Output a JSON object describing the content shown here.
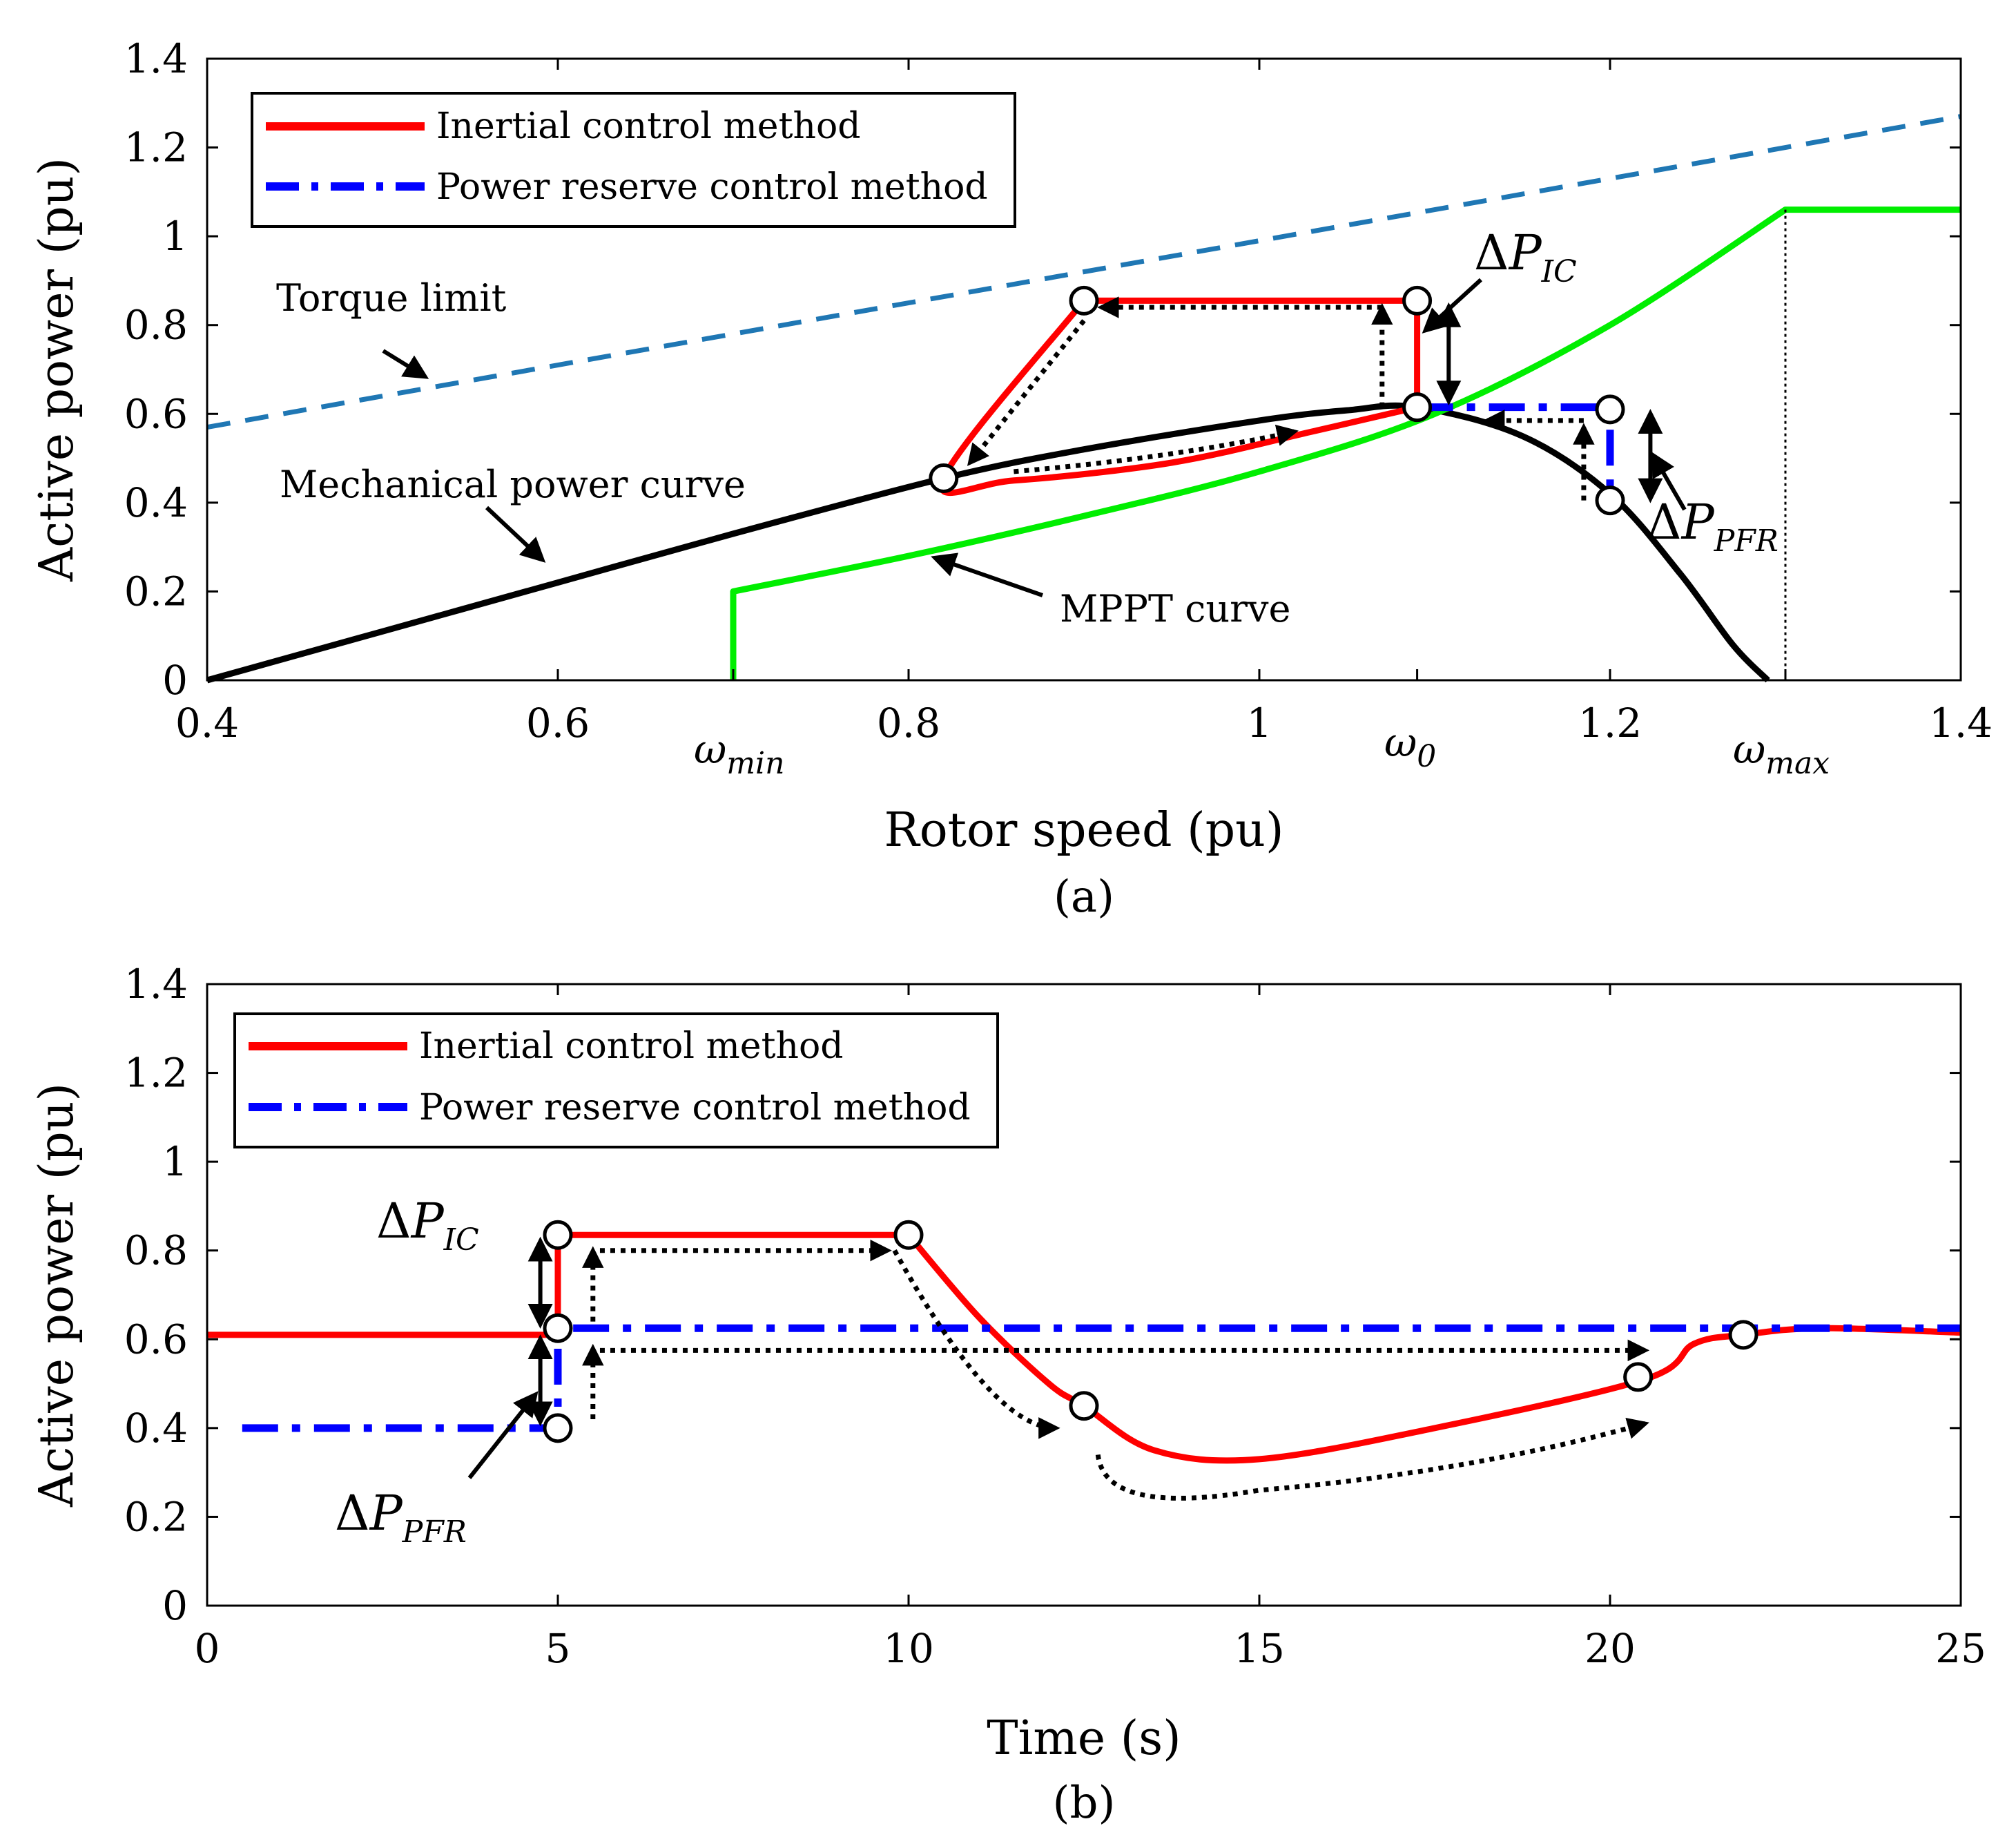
{
  "chart_data": [
    {
      "type": "line",
      "panel_label": "(a)",
      "xlabel": "Rotor speed (pu)",
      "ylabel": "Active power (pu)",
      "xlim": [
        0.4,
        1.4
      ],
      "ylim": [
        0,
        1.4
      ],
      "xticks": [
        {
          "label": "0.4",
          "value": 0.4
        },
        {
          "label": "0.6",
          "value": 0.6
        },
        {
          "label": "0.8",
          "value": 0.8
        },
        {
          "label": "1",
          "value": 1.0
        },
        {
          "label": "1.2",
          "value": 1.2
        },
        {
          "label": "1.4",
          "value": 1.4
        }
      ],
      "symbol_ticks": [
        {
          "sym": "ω",
          "sub": "min",
          "value": 0.7
        },
        {
          "sym": "ω",
          "sub": "0",
          "value": 1.09
        },
        {
          "sym": "ω",
          "sub": "max",
          "value": 1.3
        }
      ],
      "yticks": [
        {
          "label": "0",
          "value": 0
        },
        {
          "label": "0.2",
          "value": 0.2
        },
        {
          "label": "0.4",
          "value": 0.4
        },
        {
          "label": "0.6",
          "value": 0.6
        },
        {
          "label": "0.8",
          "value": 0.8
        },
        {
          "label": "1",
          "value": 1.0
        },
        {
          "label": "1.2",
          "value": 1.2
        },
        {
          "label": "1.4",
          "value": 1.4
        }
      ],
      "legend": {
        "position": "top-left",
        "entries": [
          {
            "label": "Inertial control method",
            "color": "#ff0000",
            "style": "solid"
          },
          {
            "label": "Power reserve control method",
            "color": "#0000ff",
            "style": "dash-dot"
          }
        ]
      },
      "series": [
        {
          "name": "Torque limit",
          "color": "#1f77b4",
          "style": "dashed",
          "x": [
            0.4,
            1.4
          ],
          "y": [
            0.57,
            1.27
          ]
        },
        {
          "name": "Mechanical power curve",
          "color": "#000000",
          "style": "solid",
          "x": [
            0.4,
            0.5,
            0.6,
            0.7,
            0.82,
            0.9,
            1.0,
            1.05,
            1.09,
            1.15,
            1.2,
            1.24,
            1.27,
            1.29
          ],
          "y": [
            0.0,
            0.11,
            0.22,
            0.33,
            0.455,
            0.52,
            0.585,
            0.608,
            0.615,
            0.55,
            0.42,
            0.24,
            0.08,
            0.0
          ]
        },
        {
          "name": "MPPT curve",
          "color": "#00ee00",
          "style": "solid",
          "x": [
            0.7,
            0.7,
            0.8,
            0.9,
            1.0,
            1.1,
            1.2,
            1.3,
            1.3,
            1.4
          ],
          "y": [
            0.0,
            0.2,
            0.28,
            0.37,
            0.47,
            0.6,
            0.8,
            1.06,
            1.06,
            1.06
          ]
        },
        {
          "name": "Inertial control method",
          "color": "#ff0000",
          "style": "solid",
          "x": [
            1.09,
            1.09,
            0.9,
            0.82,
            0.86,
            0.95,
            1.03,
            1.09
          ],
          "y": [
            0.615,
            0.855,
            0.855,
            0.455,
            0.45,
            0.49,
            0.56,
            0.615
          ]
        },
        {
          "name": "Power reserve control method",
          "color": "#0000ff",
          "style": "dash-dot",
          "x": [
            1.09,
            1.2,
            1.2
          ],
          "y": [
            0.615,
            0.615,
            0.405
          ]
        }
      ],
      "markers": [
        {
          "x": 0.9,
          "y": 0.855
        },
        {
          "x": 1.09,
          "y": 0.855
        },
        {
          "x": 1.09,
          "y": 0.615
        },
        {
          "x": 0.82,
          "y": 0.455
        },
        {
          "x": 1.2,
          "y": 0.61
        },
        {
          "x": 1.2,
          "y": 0.405
        }
      ],
      "annotations": {
        "torque_limit": "Torque limit",
        "mech_curve": "Mechanical power curve",
        "mppt_curve": "MPPT curve",
        "dP_IC": {
          "delta": "Δ",
          "sym": "P",
          "sub": "IC"
        },
        "dP_PFR": {
          "delta": "Δ",
          "sym": "P",
          "sub": "PFR"
        }
      }
    },
    {
      "type": "line",
      "panel_label": "(b)",
      "xlabel": "Time (s)",
      "ylabel": "Active power (pu)",
      "xlim": [
        0,
        25
      ],
      "ylim": [
        0,
        1.4
      ],
      "xticks": [
        {
          "label": "0",
          "value": 0
        },
        {
          "label": "5",
          "value": 5
        },
        {
          "label": "10",
          "value": 10
        },
        {
          "label": "15",
          "value": 15
        },
        {
          "label": "20",
          "value": 20
        },
        {
          "label": "25",
          "value": 25
        }
      ],
      "yticks": [
        {
          "label": "0",
          "value": 0
        },
        {
          "label": "0.2",
          "value": 0.2
        },
        {
          "label": "0.4",
          "value": 0.4
        },
        {
          "label": "0.6",
          "value": 0.6
        },
        {
          "label": "0.8",
          "value": 0.8
        },
        {
          "label": "1",
          "value": 1.0
        },
        {
          "label": "1.2",
          "value": 1.2
        },
        {
          "label": "1.4",
          "value": 1.4
        }
      ],
      "legend": {
        "position": "top-left",
        "entries": [
          {
            "label": "Inertial control method",
            "color": "#ff0000",
            "style": "solid"
          },
          {
            "label": "Power reserve control method",
            "color": "#0000ff",
            "style": "dash-dot"
          }
        ]
      },
      "series": [
        {
          "name": "Inertial control method",
          "color": "#ff0000",
          "style": "solid",
          "x": [
            0,
            5,
            5,
            10,
            11,
            12,
            12.5,
            13.5,
            15,
            17.5,
            20.5,
            21.2,
            21.9,
            23,
            25
          ],
          "y": [
            0.61,
            0.61,
            0.835,
            0.835,
            0.65,
            0.5,
            0.45,
            0.35,
            0.33,
            0.4,
            0.51,
            0.59,
            0.61,
            0.625,
            0.615
          ]
        },
        {
          "name": "Power reserve control method",
          "color": "#0000ff",
          "style": "dash-dot",
          "x": [
            0.5,
            5,
            5,
            25
          ],
          "y": [
            0.4,
            0.4,
            0.625,
            0.625
          ]
        }
      ],
      "markers": [
        {
          "x": 5,
          "y": 0.835
        },
        {
          "x": 5,
          "y": 0.625
        },
        {
          "x": 5,
          "y": 0.4
        },
        {
          "x": 10,
          "y": 0.835
        },
        {
          "x": 12.5,
          "y": 0.45
        },
        {
          "x": 20.4,
          "y": 0.515
        },
        {
          "x": 21.9,
          "y": 0.61
        }
      ],
      "annotations": {
        "dP_IC": {
          "delta": "Δ",
          "sym": "P",
          "sub": "IC"
        },
        "dP_PFR": {
          "delta": "Δ",
          "sym": "P",
          "sub": "PFR"
        }
      }
    }
  ]
}
